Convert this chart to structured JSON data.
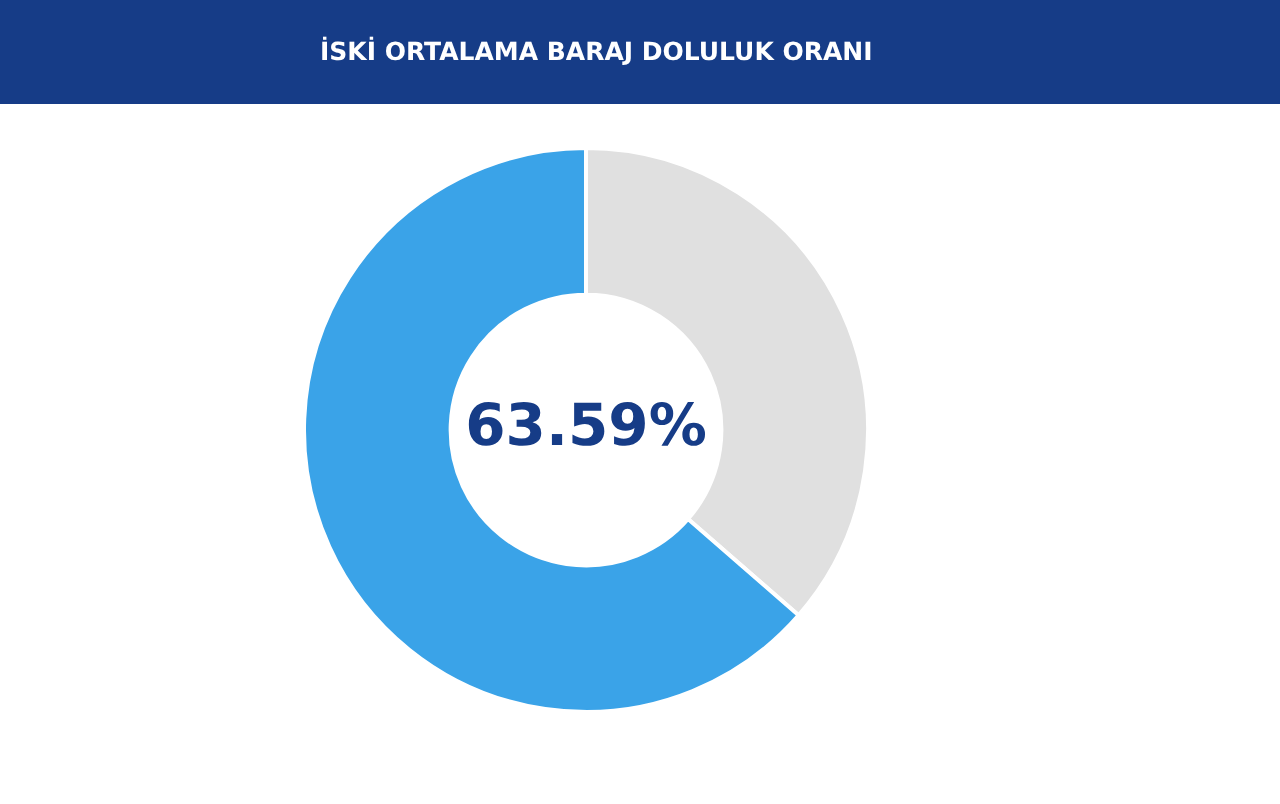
{
  "chart_data": {
    "type": "donut",
    "title": "İSKİ ORTALAMA BARAJ DOLULUK ORANI",
    "categories": [
      null,
      null
    ],
    "values": [
      36.41,
      63.59
    ],
    "colors": [
      "#e0e0e0",
      "#3aa3e8"
    ],
    "value_labels": [
      null,
      "63.59%"
    ],
    "legend": false
  }
}
